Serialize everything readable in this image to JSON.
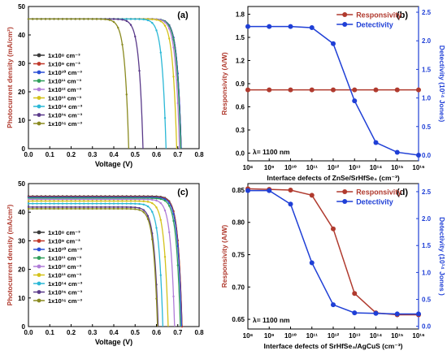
{
  "chart_data": [
    {
      "panel": "(a)",
      "type": "line",
      "xlabel": "Voltage (V)",
      "ylabel": "Photocurrent density (mA/cm²)",
      "xlim": [
        0,
        0.8
      ],
      "ylim": [
        0,
        50
      ],
      "xticks": [
        "0.0",
        "0.1",
        "0.2",
        "0.3",
        "0.4",
        "0.5",
        "0.6",
        "0.7",
        "0.8"
      ],
      "yticks": [
        "0",
        "10",
        "20",
        "30",
        "40",
        "50"
      ],
      "legend_placement": "left",
      "series": [
        {
          "name": "1x10⁸  cm⁻³",
          "color": "#3a3a3a",
          "jsc": 45.6,
          "voc": 0.716
        },
        {
          "name": "1x10⁹  cm⁻³",
          "color": "#c0392b",
          "jsc": 45.6,
          "voc": 0.716
        },
        {
          "name": "1x10¹⁰ cm⁻³",
          "color": "#2b4fd6",
          "jsc": 45.6,
          "voc": 0.716
        },
        {
          "name": "1x10¹¹ cm⁻³",
          "color": "#2e9e5a",
          "jsc": 45.6,
          "voc": 0.714
        },
        {
          "name": "1x10¹² cm⁻³",
          "color": "#b07cd8",
          "jsc": 45.6,
          "voc": 0.708
        },
        {
          "name": "1x10¹³ cm⁻³",
          "color": "#d4c21a",
          "jsc": 45.6,
          "voc": 0.695
        },
        {
          "name": "1x10¹⁴ cm⁻³",
          "color": "#2bb8d6",
          "jsc": 45.6,
          "voc": 0.645
        },
        {
          "name": "1x10¹⁵ cm⁻³",
          "color": "#5a3a8a",
          "jsc": 45.6,
          "voc": 0.537
        },
        {
          "name": "1x10¹⁶ cm⁻³",
          "color": "#8a8a20",
          "jsc": 45.6,
          "voc": 0.47
        }
      ]
    },
    {
      "panel": "(b)",
      "type": "line",
      "xlabel": "Interface defects of ZnSe/SrHfSe₃ (cm⁻³)",
      "ylabel_left": "Responsivity (A/W)",
      "ylabel_right": "Detectivity (10¹⁴ Jones)",
      "annotation": "λ= 1100 nm",
      "x_exponents": [
        8,
        9,
        10,
        11,
        12,
        13,
        14,
        15,
        16
      ],
      "x_tick_labels": [
        "10⁸",
        "10⁹",
        "10¹⁰",
        "10¹¹",
        "10¹²",
        "10¹³",
        "10¹⁴",
        "10¹⁵",
        "10¹⁶"
      ],
      "ylim_left": [
        -0.1,
        1.9
      ],
      "yticks_left": [
        "0.0",
        "0.3",
        "0.6",
        "0.9",
        "1.2",
        "1.5",
        "1.8"
      ],
      "ylim_right": [
        -0.1,
        2.6
      ],
      "yticks_right": [
        "0.0",
        "0.5",
        "1.0",
        "1.5",
        "2.0",
        "2.5"
      ],
      "legend_placement": "top-right",
      "series": [
        {
          "name": "Responsivity",
          "axis": "left",
          "color": "#b03a2e",
          "values": [
            0.82,
            0.82,
            0.82,
            0.82,
            0.82,
            0.82,
            0.82,
            0.82,
            0.82
          ]
        },
        {
          "name": "Detectivity",
          "axis": "right",
          "color": "#1f3fd6",
          "values": [
            2.25,
            2.25,
            2.25,
            2.23,
            1.95,
            0.95,
            0.22,
            0.05,
            0.0
          ]
        }
      ]
    },
    {
      "panel": "(c)",
      "type": "line",
      "xlabel": "Voltage (V)",
      "ylabel": "Photocurrent density (mA/cm²)",
      "xlim": [
        0,
        0.8
      ],
      "ylim": [
        0,
        50
      ],
      "xticks": [
        "0.0",
        "0.1",
        "0.2",
        "0.3",
        "0.4",
        "0.5",
        "0.6",
        "0.7",
        "0.8"
      ],
      "yticks": [
        "0",
        "10",
        "20",
        "30",
        "40",
        "50"
      ],
      "legend_placement": "left",
      "series": [
        {
          "name": "1x10⁸  cm⁻³",
          "color": "#3a3a3a",
          "jsc": 45.6,
          "voc": 0.72
        },
        {
          "name": "1x10⁹  cm⁻³",
          "color": "#c0392b",
          "jsc": 45.4,
          "voc": 0.72
        },
        {
          "name": "1x10¹⁰ cm⁻³",
          "color": "#2b4fd6",
          "jsc": 45.2,
          "voc": 0.718
        },
        {
          "name": "1x10¹¹ cm⁻³",
          "color": "#2e9e5a",
          "jsc": 44.9,
          "voc": 0.712
        },
        {
          "name": "1x10¹² cm⁻³",
          "color": "#b07cd8",
          "jsc": 44.5,
          "voc": 0.685
        },
        {
          "name": "1x10¹³ cm⁻³",
          "color": "#d4c21a",
          "jsc": 43.9,
          "voc": 0.655
        },
        {
          "name": "1x10¹⁴ cm⁻³",
          "color": "#2bb8d6",
          "jsc": 43.0,
          "voc": 0.63
        },
        {
          "name": "1x10¹⁵ cm⁻³",
          "color": "#5a3a8a",
          "jsc": 41.8,
          "voc": 0.608
        },
        {
          "name": "1x10¹⁶ cm⁻³",
          "color": "#8a8a20",
          "jsc": 41.2,
          "voc": 0.605
        }
      ]
    },
    {
      "panel": "(d)",
      "type": "line",
      "xlabel": "Interface defects of SrHfSe₃/AgCuS (cm⁻³)",
      "ylabel_left": "Responsivity (A/W)",
      "ylabel_right": "Detectivity (10¹⁴ Jones )",
      "annotation": "λ= 1100 nm",
      "x_exponents": [
        8,
        9,
        10,
        11,
        12,
        13,
        14,
        15,
        16
      ],
      "x_tick_labels": [
        "10⁸",
        "10⁹",
        "10¹⁰",
        "10¹¹",
        "10¹²",
        "10¹³",
        "10¹⁴",
        "10¹⁵",
        "10¹⁶"
      ],
      "ylim_left": [
        0.635,
        0.86
      ],
      "yticks_left": [
        "0.65",
        "0.70",
        "0.75",
        "0.80",
        "0.85"
      ],
      "ylim_right": [
        -0.05,
        2.65
      ],
      "yticks_right": [
        "0.0",
        "0.5",
        "1.0",
        "1.5",
        "2.0",
        "2.5"
      ],
      "legend_placement": "top-right",
      "series": [
        {
          "name": "Responsivity",
          "axis": "left",
          "color": "#b03a2e",
          "values": [
            0.852,
            0.851,
            0.85,
            0.842,
            0.79,
            0.69,
            0.66,
            0.657,
            0.657
          ]
        },
        {
          "name": "Detectivity",
          "axis": "right",
          "color": "#1f3fd6",
          "values": [
            2.52,
            2.52,
            2.27,
            1.18,
            0.4,
            0.25,
            0.24,
            0.23,
            0.23
          ]
        }
      ]
    }
  ]
}
